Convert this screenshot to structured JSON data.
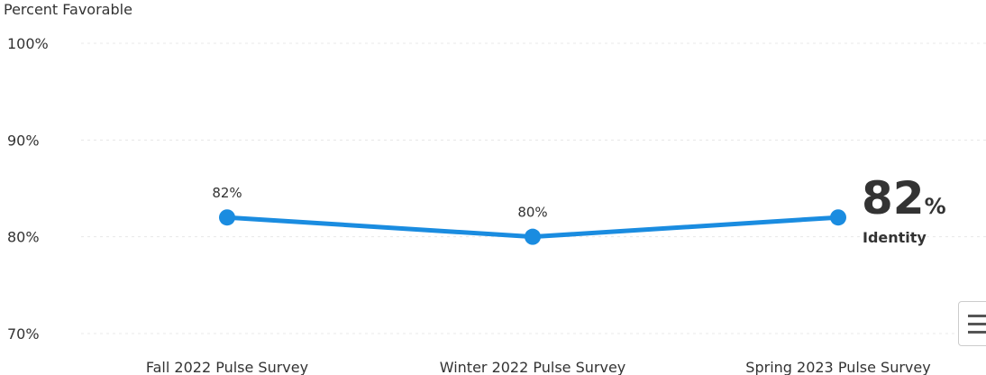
{
  "chart_data": {
    "type": "line",
    "ylabel": "Percent Favorable",
    "ylim": [
      70,
      100
    ],
    "yticks": [
      "100%",
      "90%",
      "80%",
      "70%"
    ],
    "ytick_values": [
      100,
      90,
      80,
      70
    ],
    "categories": [
      "Fall 2022 Pulse Survey",
      "Winter 2022 Pulse Survey",
      "Spring 2023 Pulse Survey"
    ],
    "series": [
      {
        "values": [
          82,
          80,
          82
        ],
        "labels": [
          "82%",
          "80%",
          ""
        ],
        "color": "#1a8ce0"
      }
    ],
    "grid": true,
    "callout": {
      "value": "82",
      "unit": "%",
      "label": "Identity"
    }
  },
  "menu": {
    "icon": "hamburger-menu-icon"
  }
}
